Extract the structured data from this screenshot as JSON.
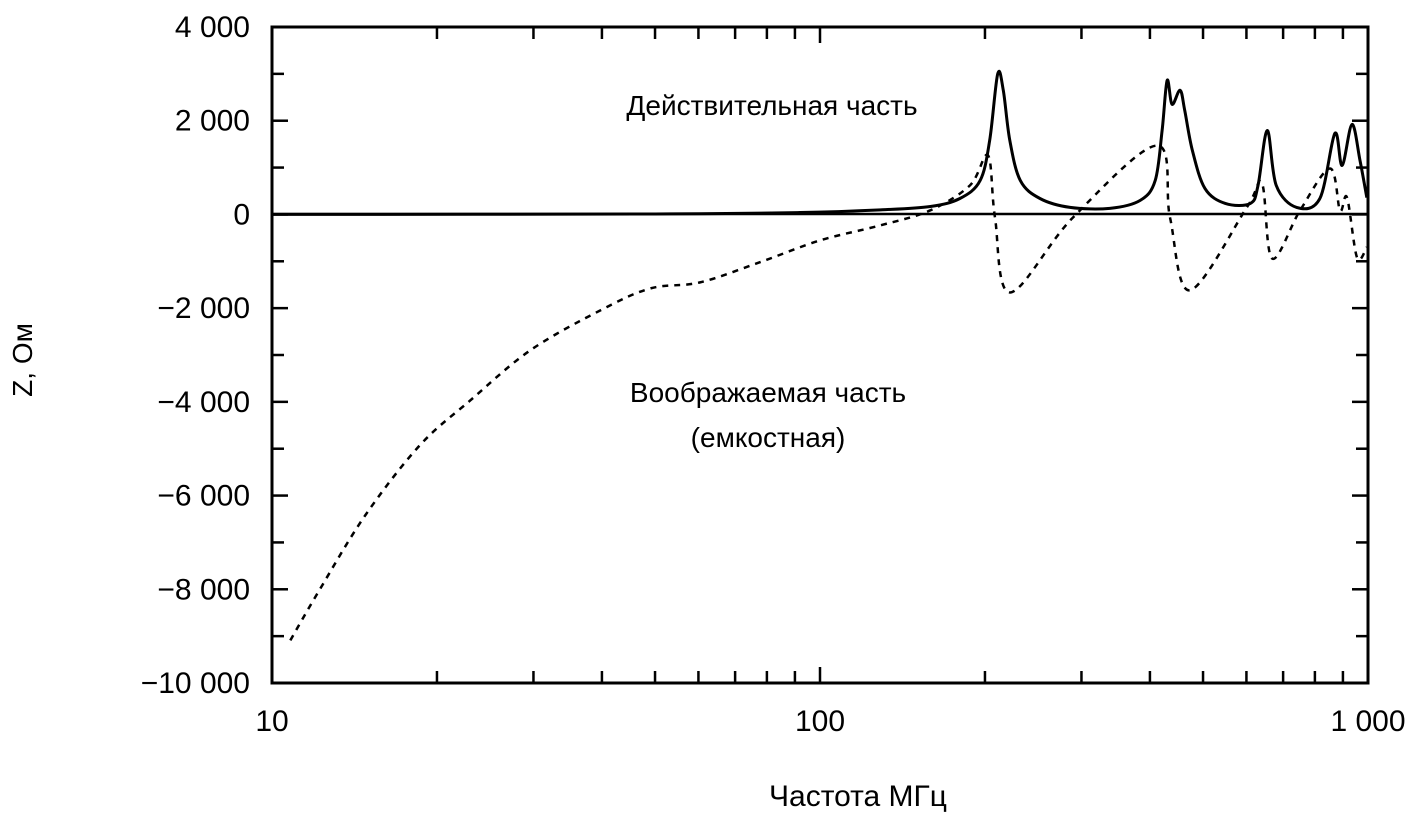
{
  "chart_data": {
    "type": "line",
    "title": "",
    "xlabel": "Частота МГц",
    "ylabel": "Z, Ом",
    "xscale": "log",
    "xlim": [
      10,
      1000
    ],
    "ylim": [
      -10000,
      4000
    ],
    "x_ticks": [
      10,
      100,
      1000
    ],
    "x_tick_labels": [
      "10",
      "100",
      "1 000"
    ],
    "y_ticks": [
      4000,
      2000,
      0,
      -2000,
      -4000,
      -6000,
      -8000,
      -10000
    ],
    "y_tick_labels": [
      "4 000",
      "2 000",
      "0",
      "−2 000",
      "−4 000",
      "−6 000",
      "−8 000",
      "−10 000"
    ],
    "grid": false,
    "annotations": [
      "Действительная часть",
      "Воображаемая часть",
      "(емкостная)"
    ],
    "series": [
      {
        "name": "Действительная часть",
        "style": "solid",
        "x": [
          10,
          50,
          92,
          130,
          159,
          180,
          196,
          204,
          211,
          216,
          222,
          232,
          252,
          286,
          338,
          384,
          409,
          421,
          430,
          439,
          454,
          463,
          478,
          504,
          549,
          610,
          630,
          655,
          680,
          741,
          817,
          870,
          897,
          935,
          967,
          995
        ],
        "y": [
          0,
          10,
          40,
          100,
          170,
          340,
          725,
          1580,
          3000,
          2650,
          1580,
          725,
          340,
          150,
          130,
          300,
          725,
          1790,
          2860,
          2350,
          2650,
          2220,
          1370,
          555,
          235,
          235,
          620,
          1790,
          620,
          150,
          340,
          1730,
          1045,
          1920,
          1150,
          360
        ]
      },
      {
        "name": "Воображаемая часть (емкостная)",
        "style": "dashed",
        "x": [
          10.8,
          12.2,
          14.8,
          18.6,
          23,
          29.6,
          39.7,
          49,
          60.4,
          77.7,
          100,
          128.7,
          158.8,
          187.8,
          202.6,
          208.6,
          222.2,
          289.5,
          412,
          435.2,
          473.2,
          601,
          640.7,
          668.3,
          751.6,
          852.5,
          889,
          915.6,
          955,
          995
        ],
        "y": [
          -9090,
          -8020,
          -6420,
          -4930,
          -3970,
          -2900,
          -2050,
          -1580,
          -1450,
          -1020,
          -555,
          -235,
          85,
          620,
          1260,
          -65,
          -1665,
          -65,
          1470,
          -65,
          -1620,
          150,
          660,
          -940,
          85,
          980,
          85,
          360,
          -920,
          -700
        ]
      }
    ]
  }
}
